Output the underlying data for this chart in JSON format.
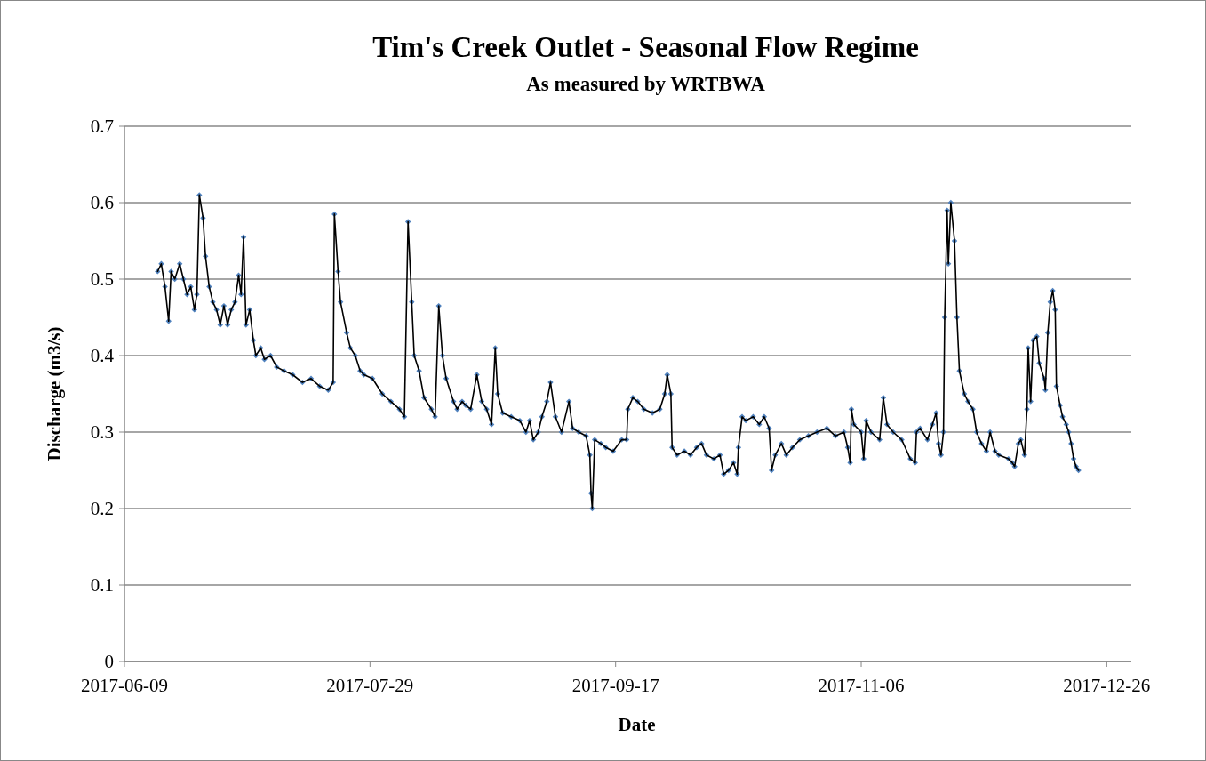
{
  "chart_data": {
    "type": "line",
    "title": "Tim's Creek Outlet - Seasonal Flow Regime",
    "subtitle": "As measured by WRTBWA",
    "xlabel": "Date",
    "ylabel": "Discharge (m3/s)",
    "xlim": [
      "2017-06-09",
      "2017-12-31"
    ],
    "xticks": [
      "2017-06-09",
      "2017-07-29",
      "2017-09-17",
      "2017-11-06",
      "2017-12-26"
    ],
    "ylim": [
      0,
      0.7
    ],
    "yticks": [
      0,
      0.1,
      0.2,
      0.3,
      0.4,
      0.5,
      0.6,
      0.7
    ],
    "grid": "y",
    "marker": "diamond",
    "line_style": "solid",
    "x": [
      "2017-06-15T18:00",
      "2017-06-16T12:00",
      "2017-06-17T06:00",
      "2017-06-18T00:00",
      "2017-06-18T12:00",
      "2017-06-19T06:00",
      "2017-06-20T06:00",
      "2017-06-21T00:00",
      "2017-06-21T18:00",
      "2017-06-22T12:00",
      "2017-06-23T06:00",
      "2017-06-23T18:00",
      "2017-06-24T06:00",
      "2017-06-25T00:00",
      "2017-06-25T12:00",
      "2017-06-26T06:00",
      "2017-06-27T00:00",
      "2017-06-27T18:00",
      "2017-06-28T12:00",
      "2017-06-29T06:00",
      "2017-06-30T00:00",
      "2017-06-30T18:00",
      "2017-07-01T12:00",
      "2017-07-02T06:00",
      "2017-07-02T18:00",
      "2017-07-03T06:00",
      "2017-07-03T18:00",
      "2017-07-04T12:00",
      "2017-07-05T06:00",
      "2017-07-05T18:00",
      "2017-07-06T18:00",
      "2017-07-07T12:00",
      "2017-07-08T18:00",
      "2017-07-10T00:00",
      "2017-07-11T12:00",
      "2017-07-13T06:00",
      "2017-07-15T06:00",
      "2017-07-17T00:00",
      "2017-07-18T18:00",
      "2017-07-20T12:00",
      "2017-07-21T12:00",
      "2017-07-21T18:00",
      "2017-07-22T12:00",
      "2017-07-23T00:00",
      "2017-07-24T06:00",
      "2017-07-25T00:00",
      "2017-07-26T00:00",
      "2017-07-27T00:00",
      "2017-07-27T18:00",
      "2017-07-29T12:00",
      "2017-07-31T12:00",
      "2017-08-02T06:00",
      "2017-08-04T00:00",
      "2017-08-05T00:00",
      "2017-08-05T18:00",
      "2017-08-06T12:00",
      "2017-08-07T00:00",
      "2017-08-08T00:00",
      "2017-08-09T00:00",
      "2017-08-10T12:00",
      "2017-08-11T06:00",
      "2017-08-12T00:00",
      "2017-08-12T18:00",
      "2017-08-13T12:00",
      "2017-08-15T00:00",
      "2017-08-15T18:00",
      "2017-08-16T18:00",
      "2017-08-17T12:00",
      "2017-08-18T12:00",
      "2017-08-19T18:00",
      "2017-08-20T18:00",
      "2017-08-21T18:00",
      "2017-08-22T18:00",
      "2017-08-23T12:00",
      "2017-08-24T00:00",
      "2017-08-25T00:00",
      "2017-08-26T18:00",
      "2017-08-28T12:00",
      "2017-08-29T18:00",
      "2017-08-30T12:00",
      "2017-08-31T06:00",
      "2017-09-01T06:00",
      "2017-09-02T00:00",
      "2017-09-03T00:00",
      "2017-09-03T18:00",
      "2017-09-04T18:00",
      "2017-09-06T00:00",
      "2017-09-07T12:00",
      "2017-09-08T06:00",
      "2017-09-09T12:00",
      "2017-09-11T00:00",
      "2017-09-11T18:00",
      "2017-09-12T00:00",
      "2017-09-12T06:00",
      "2017-09-12T18:00",
      "2017-09-14T00:00",
      "2017-09-15T00:00",
      "2017-09-16T12:00",
      "2017-09-18T06:00",
      "2017-09-19T06:00",
      "2017-09-19T12:00",
      "2017-09-20T12:00",
      "2017-09-21T12:00",
      "2017-09-22T18:00",
      "2017-09-24T12:00",
      "2017-09-26T00:00",
      "2017-09-27T00:00",
      "2017-09-27T12:00",
      "2017-09-28T06:00",
      "2017-09-28T12:00",
      "2017-09-29T12:00",
      "2017-10-01T00:00",
      "2017-10-02T06:00",
      "2017-10-03T12:00",
      "2017-10-04T12:00",
      "2017-10-05T12:00",
      "2017-10-07T00:00",
      "2017-10-08T06:00",
      "2017-10-09T00:00",
      "2017-10-10T00:00",
      "2017-10-11T00:00",
      "2017-10-11T18:00",
      "2017-10-12T00:00",
      "2017-10-12T18:00",
      "2017-10-13T12:00",
      "2017-10-15T00:00",
      "2017-10-16T06:00",
      "2017-10-17T06:00",
      "2017-10-18T06:00",
      "2017-10-18T18:00",
      "2017-10-19T12:00",
      "2017-10-20T18:00",
      "2017-10-21T18:00",
      "2017-10-23T00:00",
      "2017-10-24T12:00",
      "2017-10-26T06:00",
      "2017-10-28T00:00",
      "2017-10-30T00:00",
      "2017-10-31T18:00",
      "2017-11-02T12:00",
      "2017-11-03T06:00",
      "2017-11-03T18:00",
      "2017-11-04T00:00",
      "2017-11-04T12:00",
      "2017-11-06T00:00",
      "2017-11-06T12:00",
      "2017-11-07T00:00",
      "2017-11-08T00:00",
      "2017-11-09T18:00",
      "2017-11-10T12:00",
      "2017-11-11T06:00",
      "2017-11-12T12:00",
      "2017-11-14T06:00",
      "2017-11-16T00:00",
      "2017-11-17T00:00",
      "2017-11-17T06:00",
      "2017-11-18T00:00",
      "2017-11-19T12:00",
      "2017-11-20T12:00",
      "2017-11-21T06:00",
      "2017-11-21T18:00",
      "2017-11-22T06:00",
      "2017-11-22T18:00",
      "2017-11-23T00:00",
      "2017-11-23T12:00",
      "2017-11-23T18:00",
      "2017-11-24T06:00",
      "2017-11-25T00:00",
      "2017-11-25T12:00",
      "2017-11-26T00:00",
      "2017-11-27T00:00",
      "2017-11-27T18:00",
      "2017-11-28T18:00",
      "2017-11-29T12:00",
      "2017-11-30T12:00",
      "2017-12-01T12:00",
      "2017-12-02T06:00",
      "2017-12-03T06:00",
      "2017-12-04T00:00",
      "2017-12-06T00:00",
      "2017-12-06T18:00",
      "2017-12-07T06:00",
      "2017-12-08T00:00",
      "2017-12-08T12:00",
      "2017-12-09T06:00",
      "2017-12-09T18:00",
      "2017-12-10T00:00",
      "2017-12-10T12:00",
      "2017-12-11T00:00",
      "2017-12-11T18:00",
      "2017-12-12T06:00",
      "2017-12-13T06:00",
      "2017-12-13T12:00",
      "2017-12-14T00:00",
      "2017-12-14T12:00",
      "2017-12-15T00:00",
      "2017-12-15T12:00",
      "2017-12-15T18:00",
      "2017-12-16T12:00",
      "2017-12-17T00:00",
      "2017-12-17T18:00",
      "2017-12-18T06:00",
      "2017-12-18T18:00",
      "2017-12-19T06:00",
      "2017-12-19T18:00",
      "2017-12-20T06:00"
    ],
    "series": [
      {
        "color": "#4f81bd",
        "values": [
          0.51,
          0.52,
          0.49,
          0.445,
          0.51,
          0.5,
          0.52,
          0.5,
          0.48,
          0.49,
          0.46,
          0.48,
          0.61,
          0.58,
          0.53,
          0.49,
          0.47,
          0.46,
          0.44,
          0.465,
          0.44,
          0.46,
          0.47,
          0.505,
          0.48,
          0.555,
          0.44,
          0.46,
          0.42,
          0.4,
          0.41,
          0.395,
          0.4,
          0.385,
          0.38,
          0.375,
          0.365,
          0.37,
          0.36,
          0.355,
          0.365,
          0.585,
          0.51,
          0.47,
          0.43,
          0.41,
          0.4,
          0.38,
          0.375,
          0.37,
          0.35,
          0.34,
          0.33,
          0.32,
          0.575,
          0.47,
          0.4,
          0.38,
          0.345,
          0.33,
          0.32,
          0.465,
          0.4,
          0.37,
          0.34,
          0.33,
          0.34,
          0.335,
          0.33,
          0.375,
          0.34,
          0.33,
          0.31,
          0.41,
          0.35,
          0.325,
          0.32,
          0.315,
          0.3,
          0.315,
          0.29,
          0.3,
          0.32,
          0.34,
          0.365,
          0.32,
          0.3,
          0.34,
          0.305,
          0.3,
          0.295,
          0.27,
          0.22,
          0.2,
          0.29,
          0.285,
          0.28,
          0.275,
          0.29,
          0.29,
          0.33,
          0.345,
          0.34,
          0.33,
          0.325,
          0.33,
          0.35,
          0.375,
          0.35,
          0.28,
          0.27,
          0.275,
          0.27,
          0.28,
          0.285,
          0.27,
          0.265,
          0.27,
          0.245,
          0.25,
          0.26,
          0.245,
          0.28,
          0.32,
          0.315,
          0.32,
          0.31,
          0.32,
          0.305,
          0.25,
          0.27,
          0.285,
          0.27,
          0.28,
          0.29,
          0.295,
          0.3,
          0.305,
          0.295,
          0.3,
          0.28,
          0.26,
          0.33,
          0.31,
          0.3,
          0.265,
          0.315,
          0.3,
          0.29,
          0.345,
          0.31,
          0.3,
          0.29,
          0.265,
          0.26,
          0.3,
          0.305,
          0.29,
          0.31,
          0.325,
          0.285,
          0.27,
          0.3,
          0.45,
          0.59,
          0.52,
          0.6,
          0.55,
          0.45,
          0.38,
          0.35,
          0.34,
          0.33,
          0.3,
          0.285,
          0.275,
          0.3,
          0.275,
          0.27,
          0.265,
          0.26,
          0.255,
          0.285,
          0.29,
          0.27,
          0.33,
          0.41,
          0.34,
          0.42,
          0.425,
          0.39,
          0.37,
          0.355,
          0.43,
          0.47,
          0.485,
          0.46,
          0.36,
          0.335,
          0.32,
          0.31,
          0.3,
          0.285,
          0.265,
          0.255,
          0.25
        ]
      }
    ]
  }
}
